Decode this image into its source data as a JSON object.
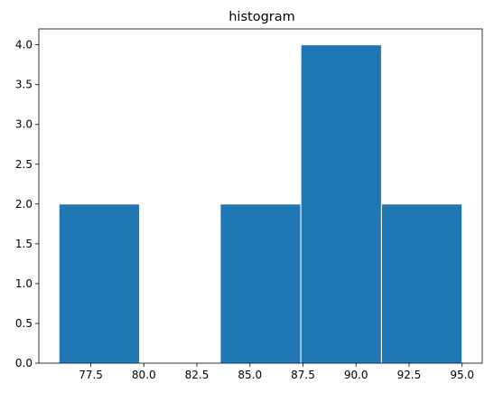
{
  "chart_data": {
    "type": "bar",
    "title": "histogram",
    "xlabel": "",
    "ylabel": "",
    "bins": [
      {
        "start": 76.0,
        "end": 79.8,
        "count": 2
      },
      {
        "start": 79.8,
        "end": 83.6,
        "count": 0
      },
      {
        "start": 83.6,
        "end": 87.4,
        "count": 2
      },
      {
        "start": 87.4,
        "end": 91.2,
        "count": 4
      },
      {
        "start": 91.2,
        "end": 95.0,
        "count": 2
      }
    ],
    "xlim": [
      75.05,
      95.95
    ],
    "ylim": [
      0,
      4.2
    ],
    "xticks": [
      77.5,
      80.0,
      82.5,
      85.0,
      87.5,
      90.0,
      92.5,
      95.0
    ],
    "xtick_labels": [
      "77.5",
      "80.0",
      "82.5",
      "85.0",
      "87.5",
      "90.0",
      "92.5",
      "95.0"
    ],
    "yticks": [
      0,
      0.5,
      1.0,
      1.5,
      2.0,
      2.5,
      3.0,
      3.5,
      4.0
    ],
    "ytick_labels": [
      "0.0",
      "0.5",
      "1.0",
      "1.5",
      "2.0",
      "2.5",
      "3.0",
      "3.5",
      "4.0"
    ],
    "grid": false,
    "colors": {
      "bar": "#1f77b4",
      "bar_edge": "#ffffff",
      "axis": "#000000"
    }
  }
}
